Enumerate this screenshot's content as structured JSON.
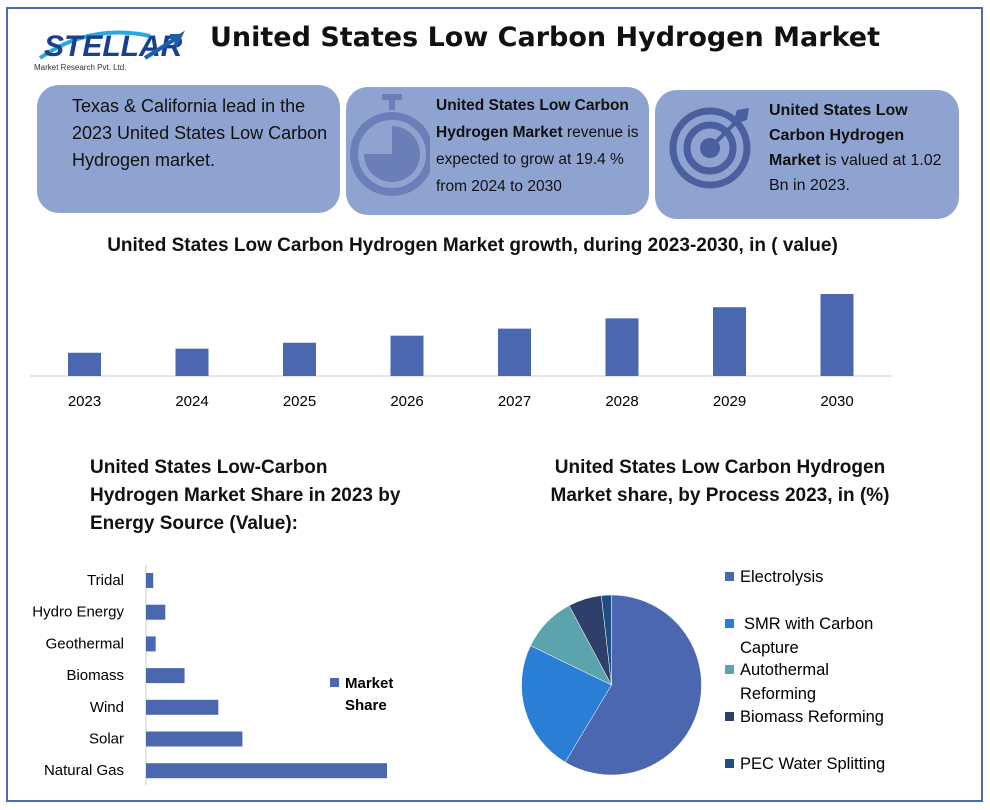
{
  "logo": {
    "name": "STELLAR",
    "tagline": "Market Research Pvt. Ltd."
  },
  "title": "United States Low Carbon Hydrogen Market",
  "cards": [
    {
      "text": "Texas & California lead in the 2023 United States Low Carbon Hydrogen market."
    },
    {
      "bold": "United States Low Carbon Hydrogen Market",
      "text": " revenue is expected to grow at 19.4 % from 2024 to 2030",
      "icon": "stopwatch-icon"
    },
    {
      "bold": "United States Low Carbon Hydrogen Market",
      "text": " is valued at 1.02 Bn in 2023.",
      "icon": "target-icon"
    }
  ],
  "colors": {
    "bar": "#4a67b0",
    "card": "#8fa3d0",
    "frame": "#4a6ab0"
  },
  "chart_data": [
    {
      "type": "bar",
      "title": "United States Low Carbon Hydrogen Market growth, during 2023-2030, in ( value)",
      "categories": [
        "2023",
        "2024",
        "2025",
        "2026",
        "2027",
        "2028",
        "2029",
        "2030"
      ],
      "values": [
        1.02,
        1.2,
        1.46,
        1.77,
        2.08,
        2.53,
        3.02,
        3.6
      ],
      "grid": false
    },
    {
      "type": "bar",
      "orientation": "horizontal",
      "title": "United States Low-Carbon Hydrogen Market Share in 2023 by Energy Source (Value):",
      "categories": [
        "Tridal",
        "Hydro Energy",
        "Geothermal",
        "Biomass",
        "Wind",
        "Solar",
        "Natural Gas"
      ],
      "series": [
        {
          "name": "Market Share",
          "values": [
            3,
            8,
            4,
            16,
            30,
            40,
            100
          ]
        }
      ],
      "legend": "right"
    },
    {
      "type": "pie",
      "title": "United States Low Carbon Hydrogen Market share, by Process 2023, in (%)",
      "labels": [
        "Electrolysis",
        "SMR with Carbon Capture",
        "Autothermal Reforming",
        "Biomass Reforming",
        "PEC Water Splitting"
      ],
      "values": [
        58.6,
        23.6,
        10,
        6,
        1.8
      ],
      "colors": [
        "#4a67b0",
        "#2a7ed6",
        "#5ba3ad",
        "#2e3f6a",
        "#1f4e82"
      ],
      "legend": "right"
    }
  ]
}
